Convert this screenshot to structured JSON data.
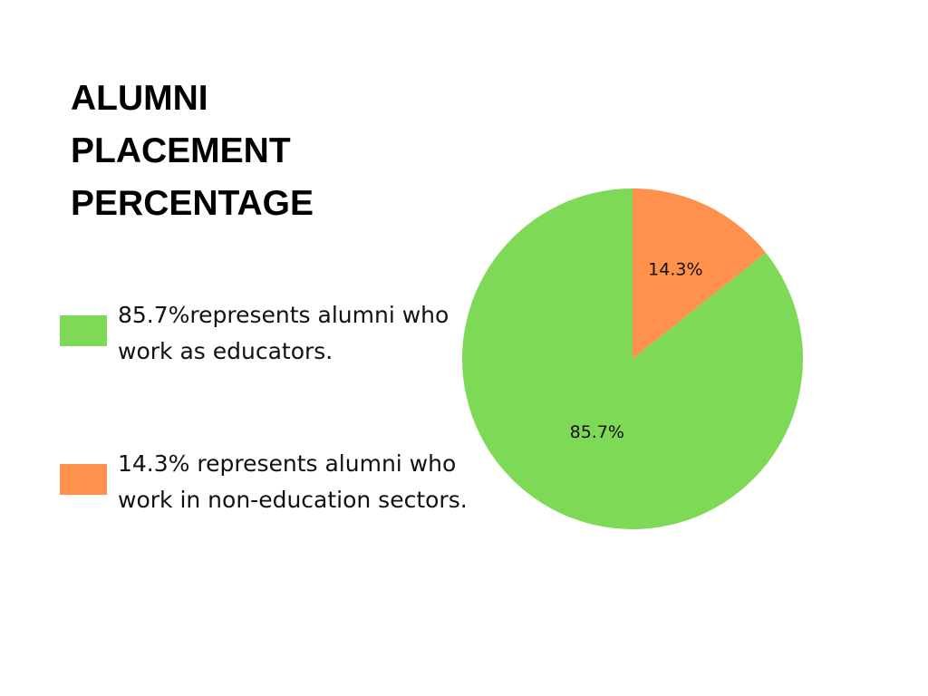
{
  "chart_data": {
    "type": "pie",
    "title": "ALUMNI PLACEMENT PERCENTAGE",
    "categories": [
      "85.7%represents alumni who work as educators.",
      "14.3% represents alumni who work in non-education sectors."
    ],
    "values": [
      85.7,
      14.3
    ],
    "value_labels": [
      "85.7%",
      "14.3%"
    ],
    "colors": [
      "#7ed957",
      "#ff914d"
    ],
    "legend": "left"
  }
}
